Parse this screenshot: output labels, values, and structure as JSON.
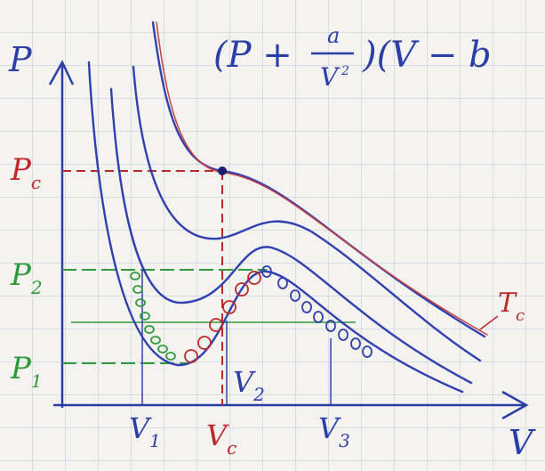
{
  "formula": {
    "left": "(P +",
    "numerator": "a",
    "denominator": "V",
    "exponent": "2",
    "right": ")(V − b"
  },
  "axes": {
    "y": "P",
    "x": "V"
  },
  "pressure_labels": [
    {
      "symbol": "P",
      "sub": "c"
    },
    {
      "symbol": "P",
      "sub": "2"
    },
    {
      "symbol": "P",
      "sub": "1"
    }
  ],
  "volume_labels": [
    {
      "symbol": "V",
      "sub": "1"
    },
    {
      "symbol": "V",
      "sub": "c"
    },
    {
      "symbol": "V",
      "sub": "2"
    },
    {
      "symbol": "V",
      "sub": "3"
    }
  ],
  "curve_label": {
    "symbol": "T",
    "sub": "c"
  }
}
